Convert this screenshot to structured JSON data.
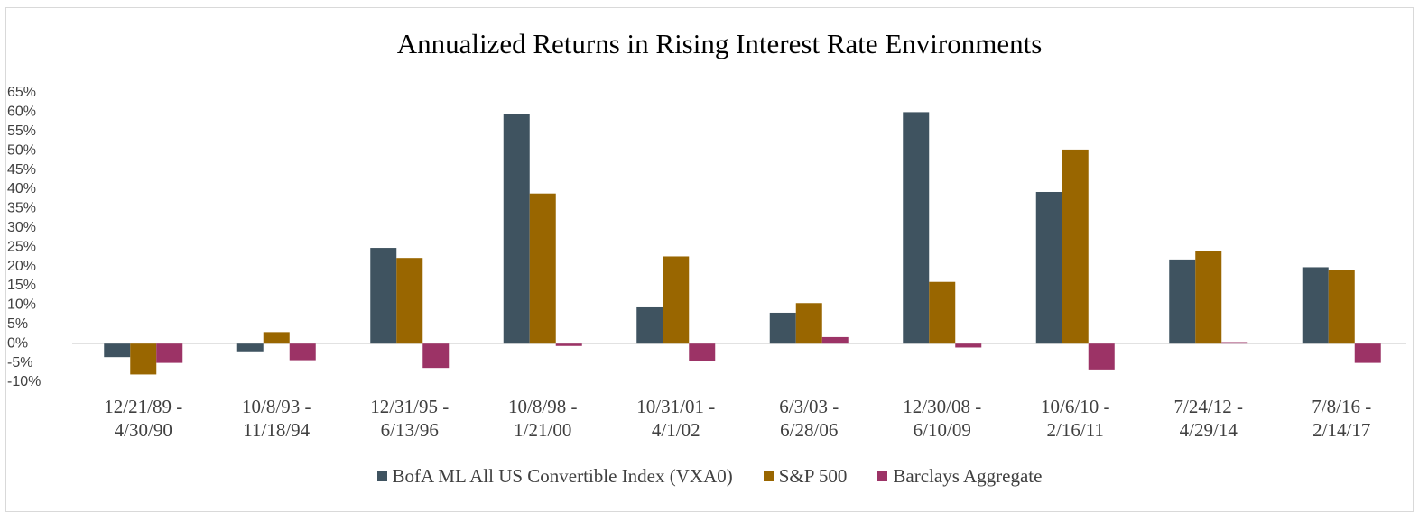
{
  "chart_data": {
    "type": "bar",
    "title": "Annualized Returns in Rising Interest Rate Environments",
    "categories": [
      "12/21/89 - 4/30/90",
      "10/8/93 - 11/18/94",
      "12/31/95 - 6/13/96",
      "10/8/98 - 1/21/00",
      "10/31/01 - 4/1/02",
      "6/3/03 - 6/28/06",
      "12/30/08 - 6/10/09",
      "10/6/10 - 2/16/11",
      "7/24/12 - 4/29/14",
      "7/8/16 - 2/14/17"
    ],
    "series": [
      {
        "name": "BofA ML All US Convertible Index (VXA0)",
        "color": "#3f5360",
        "values": [
          -3.5,
          -2,
          24.8,
          59.5,
          9.4,
          8,
          60,
          39.3,
          21.8,
          19.8
        ]
      },
      {
        "name": "S&P 500",
        "color": "#996600",
        "values": [
          -8,
          3,
          22.2,
          38.9,
          22.6,
          10.5,
          16,
          50.3,
          23.9,
          19.1
        ]
      },
      {
        "name": "Barclays Aggregate",
        "color": "#9c3366",
        "values": [
          -5,
          -4.3,
          -6.3,
          -0.6,
          -4.6,
          1.7,
          -1,
          -6.7,
          0.4,
          -5
        ]
      }
    ],
    "ylim": [
      -10,
      65
    ],
    "yticks": [
      {
        "value": 65,
        "label": "65%"
      },
      {
        "value": 60,
        "label": "60%"
      },
      {
        "value": 55,
        "label": "55%"
      },
      {
        "value": 50,
        "label": "50%"
      },
      {
        "value": 45,
        "label": "45%"
      },
      {
        "value": 40,
        "label": "40%"
      },
      {
        "value": 35,
        "label": "35%"
      },
      {
        "value": 30,
        "label": "30%"
      },
      {
        "value": 25,
        "label": "25%"
      },
      {
        "value": 20,
        "label": "20%"
      },
      {
        "value": 15,
        "label": "15%"
      },
      {
        "value": 10,
        "label": "10%"
      },
      {
        "value": 5,
        "label": "5%"
      },
      {
        "value": 0,
        "label": "0%"
      },
      {
        "value": -5,
        "label": "-5%"
      },
      {
        "value": -10,
        "label": "-10%"
      }
    ],
    "grid": false,
    "legend": "bottom"
  }
}
